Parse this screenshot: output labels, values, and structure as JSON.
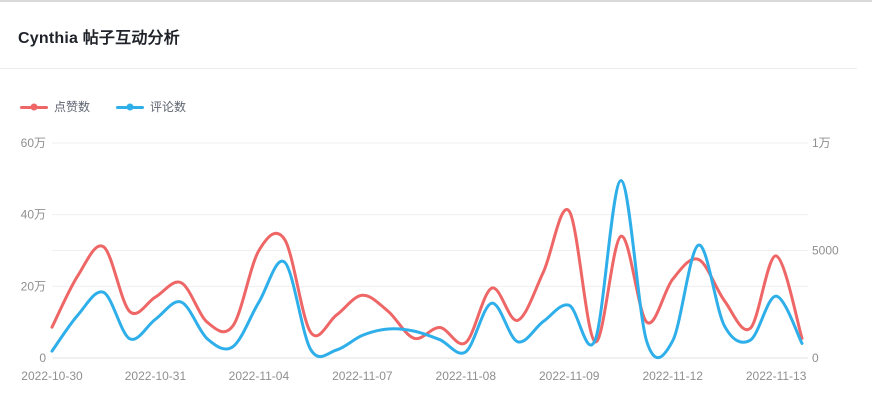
{
  "header": {
    "title": "Cynthia 帖子互动分析"
  },
  "chart_data": {
    "type": "line",
    "smooth": true,
    "grid": "horizontal-gridlines",
    "legend_position": "top-left",
    "x_tick_labels": [
      "2022-10-30",
      "2022-10-31",
      "2022-11-04",
      "2022-11-07",
      "2022-11-08",
      "2022-11-09",
      "2022-11-12",
      "2022-11-13"
    ],
    "x_tick_indices": [
      0,
      4,
      8,
      12,
      16,
      20,
      24,
      28
    ],
    "n_points": 30,
    "series": [
      {
        "name": "点赞数",
        "color": "#ee6666",
        "yAxis": "left",
        "values": [
          86000,
          230000,
          310000,
          130000,
          170000,
          210000,
          100000,
          90000,
          300000,
          330000,
          72000,
          120000,
          175000,
          130000,
          55000,
          85000,
          43000,
          195000,
          105000,
          240000,
          410000,
          45000,
          340000,
          100000,
          220000,
          275000,
          160000,
          83000,
          285000,
          55000
        ]
      },
      {
        "name": "评论数",
        "color": "#2fafea",
        "yAxis": "right",
        "values": [
          320,
          2000,
          3050,
          900,
          1800,
          2600,
          900,
          530,
          2600,
          4450,
          400,
          370,
          1050,
          1350,
          1250,
          850,
          290,
          2550,
          760,
          1700,
          2450,
          830,
          8250,
          760,
          800,
          5250,
          1500,
          830,
          2880,
          680
        ]
      }
    ],
    "left_axis": {
      "min": 0,
      "max": 600000,
      "ticks": [
        {
          "label": "0",
          "value": 0
        },
        {
          "label": "20万",
          "value": 200000
        },
        {
          "label": "40万",
          "value": 400000
        },
        {
          "label": "60万",
          "value": 600000
        }
      ]
    },
    "right_axis": {
      "min": 0,
      "max": 10000,
      "ticks": [
        {
          "label": "0",
          "value": 0
        },
        {
          "label": "5000",
          "value": 5000
        },
        {
          "label": "1万",
          "value": 10000
        }
      ]
    },
    "colors": {
      "grid_line": "#efefef",
      "axis_line": "#e2e2e2",
      "axis_text": "#8f8f8f"
    }
  }
}
